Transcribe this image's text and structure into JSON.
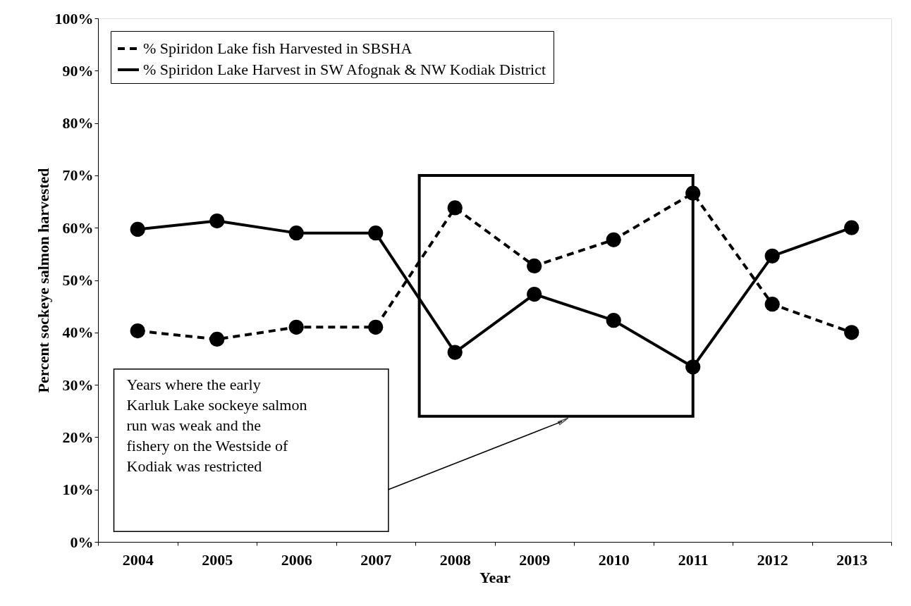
{
  "chart_data": {
    "type": "line",
    "xlabel": "Year",
    "ylabel": "Percent sockeye salmon harvested",
    "categories": [
      "2004",
      "2005",
      "2006",
      "2007",
      "2008",
      "2009",
      "2010",
      "2011",
      "2012",
      "2013"
    ],
    "series": [
      {
        "name": "% Spiridon Lake fish Harvested in SBSHA",
        "color": "#000000",
        "line_style": "dashed",
        "values": [
          40.3,
          38.7,
          41.0,
          41.0,
          63.8,
          52.7,
          57.7,
          66.6,
          45.4,
          40.0
        ]
      },
      {
        "name": "% Spiridon Lake Harvest in SW Afognak & NW Kodiak District",
        "color": "#000000",
        "line_style": "solid",
        "values": [
          59.7,
          61.3,
          59.0,
          59.0,
          36.2,
          47.3,
          42.3,
          33.4,
          54.6,
          60.0
        ]
      }
    ],
    "ylim": [
      0,
      100
    ],
    "yticks": [
      {
        "value": 0,
        "label": "0%"
      },
      {
        "value": 10,
        "label": "10%"
      },
      {
        "value": 20,
        "label": "20%"
      },
      {
        "value": 30,
        "label": "30%"
      },
      {
        "value": 40,
        "label": "40%"
      },
      {
        "value": 50,
        "label": "50%"
      },
      {
        "value": 60,
        "label": "60%"
      },
      {
        "value": 70,
        "label": "70%"
      },
      {
        "value": 80,
        "label": "80%"
      },
      {
        "value": 90,
        "label": "90%"
      },
      {
        "value": 100,
        "label": "100%"
      }
    ],
    "marker": "circle",
    "grid": false,
    "legend": "top left",
    "annotations": [
      "Years where the early Karluk Lake sockeye salmon run was weak and the fishery on the Westside of Kodiak was restricted"
    ]
  }
}
